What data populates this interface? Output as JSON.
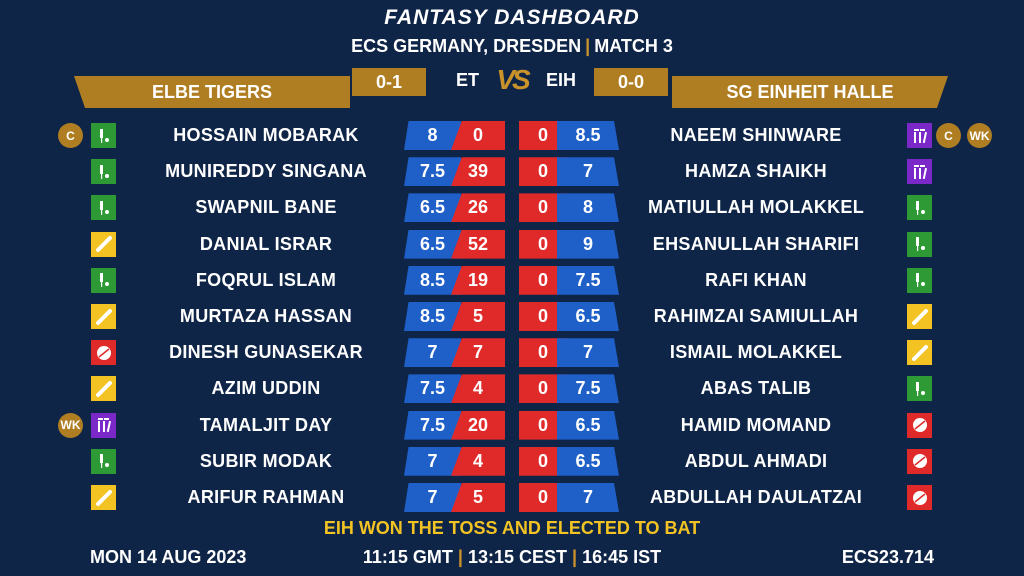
{
  "header": {
    "title": "FANTASY DASHBOARD",
    "venue": "ECS GERMANY, DRESDEN",
    "match": "MATCH 3"
  },
  "teams": {
    "left": {
      "name": "ELBE TIGERS",
      "abbr": "ET",
      "score": "0-1"
    },
    "right": {
      "name": "SG EINHEIT HALLE",
      "abbr": "EIH",
      "score": "0-0"
    },
    "vs": "VS"
  },
  "colors": {
    "background": "#0f2547",
    "gold": "#b07e22",
    "credit_blue": "#1e5fc8",
    "points_red": "#e02a2a",
    "batter": "#2e9a35",
    "allrounder": "#f2c323",
    "bowler": "#e02a2a",
    "keeper": "#7a28c8"
  },
  "players": [
    {
      "left": {
        "name": "HOSSAIN MOBARAK",
        "credits": "8",
        "points": "0",
        "role": "batter-icon",
        "badges": [
          "C"
        ]
      },
      "right": {
        "name": "NAEEM SHINWARE",
        "credits": "8.5",
        "points": "0",
        "role": "wicketkeeper-icon",
        "badges": [
          "C",
          "WK"
        ]
      }
    },
    {
      "left": {
        "name": "MUNIREDDY SINGANA",
        "credits": "7.5",
        "points": "39",
        "role": "batter-icon",
        "badges": []
      },
      "right": {
        "name": "HAMZA SHAIKH",
        "credits": "7",
        "points": "0",
        "role": "wicketkeeper-icon",
        "badges": []
      }
    },
    {
      "left": {
        "name": "SWAPNIL BANE",
        "credits": "6.5",
        "points": "26",
        "role": "batter-icon",
        "badges": []
      },
      "right": {
        "name": "MATIULLAH MOLAKKEL",
        "credits": "8",
        "points": "0",
        "role": "batter-icon",
        "badges": []
      }
    },
    {
      "left": {
        "name": "DANIAL ISRAR",
        "credits": "6.5",
        "points": "52",
        "role": "allrounder-icon",
        "badges": []
      },
      "right": {
        "name": "EHSANULLAH SHARIFI",
        "credits": "9",
        "points": "0",
        "role": "batter-icon",
        "badges": []
      }
    },
    {
      "left": {
        "name": "FOQRUL ISLAM",
        "credits": "8.5",
        "points": "19",
        "role": "batter-icon",
        "badges": []
      },
      "right": {
        "name": "RAFI KHAN",
        "credits": "7.5",
        "points": "0",
        "role": "batter-icon",
        "badges": []
      }
    },
    {
      "left": {
        "name": "MURTAZA HASSAN",
        "credits": "8.5",
        "points": "5",
        "role": "allrounder-icon",
        "badges": []
      },
      "right": {
        "name": "RAHIMZAI SAMIULLAH",
        "credits": "6.5",
        "points": "0",
        "role": "allrounder-icon",
        "badges": []
      }
    },
    {
      "left": {
        "name": "DINESH GUNASEKAR",
        "credits": "7",
        "points": "7",
        "role": "bowler-icon",
        "badges": []
      },
      "right": {
        "name": "ISMAIL MOLAKKEL",
        "credits": "7",
        "points": "0",
        "role": "allrounder-icon",
        "badges": []
      }
    },
    {
      "left": {
        "name": "AZIM UDDIN",
        "credits": "7.5",
        "points": "4",
        "role": "allrounder-icon",
        "badges": []
      },
      "right": {
        "name": "ABAS TALIB",
        "credits": "7.5",
        "points": "0",
        "role": "batter-icon",
        "badges": []
      }
    },
    {
      "left": {
        "name": "TAMALJIT DAY",
        "credits": "7.5",
        "points": "20",
        "role": "wicketkeeper-icon",
        "badges": [
          "WK"
        ]
      },
      "right": {
        "name": "HAMID MOMAND",
        "credits": "6.5",
        "points": "0",
        "role": "bowler-icon",
        "badges": []
      }
    },
    {
      "left": {
        "name": "SUBIR MODAK",
        "credits": "7",
        "points": "4",
        "role": "batter-icon",
        "badges": []
      },
      "right": {
        "name": "ABDUL AHMADI",
        "credits": "6.5",
        "points": "0",
        "role": "bowler-icon",
        "badges": []
      }
    },
    {
      "left": {
        "name": "ARIFUR RAHMAN",
        "credits": "7",
        "points": "5",
        "role": "allrounder-icon",
        "badges": []
      },
      "right": {
        "name": "ABDULLAH DAULATZAI",
        "credits": "7",
        "points": "0",
        "role": "bowler-icon",
        "badges": []
      }
    }
  ],
  "toss": "EIH WON THE TOSS AND ELECTED TO BAT",
  "footer": {
    "date": "MON 14 AUG 2023",
    "time_gmt": "11:15 GMT",
    "time_cest": "13:15 CEST",
    "time_ist": "16:45 IST",
    "code": "ECS23.714"
  }
}
